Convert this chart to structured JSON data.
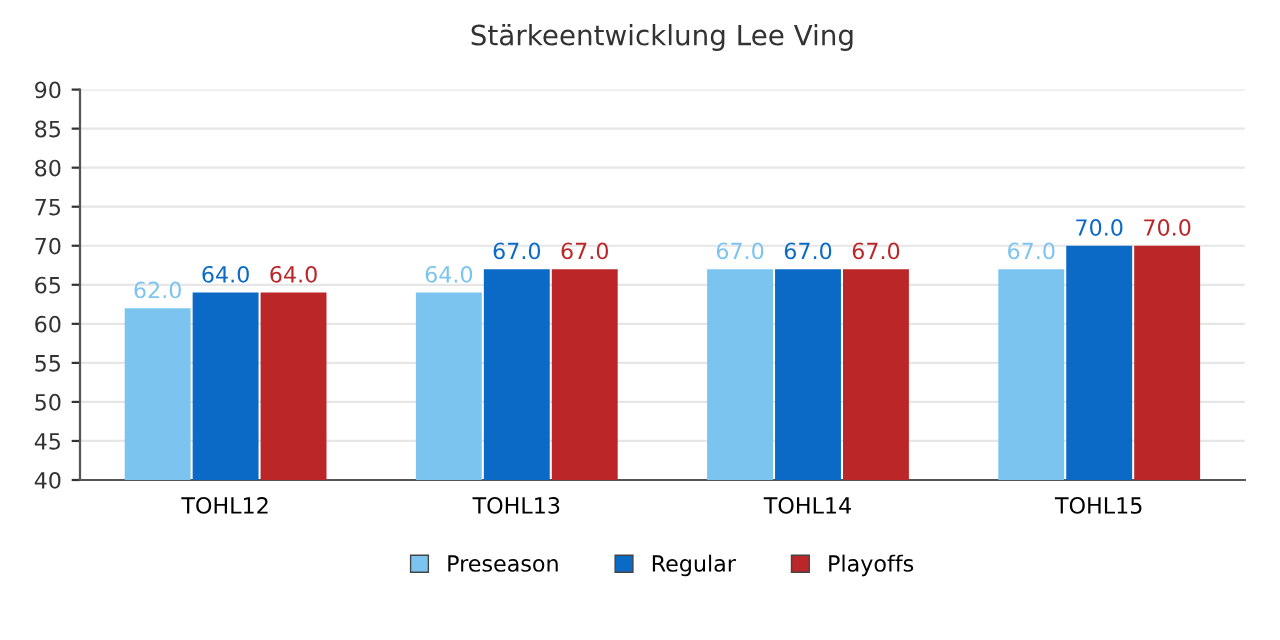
{
  "chart_data": {
    "type": "bar",
    "title": "Stärkeentwicklung Lee Ving",
    "categories": [
      "TOHL12",
      "TOHL13",
      "TOHL14",
      "TOHL15"
    ],
    "series": [
      {
        "name": "Preseason",
        "color": "#7cc4f0",
        "values": [
          62,
          64,
          67,
          67
        ],
        "value_labels": [
          "62.0",
          "64.0",
          "67.0",
          "67.0"
        ]
      },
      {
        "name": "Regular",
        "color": "#0a6ac6",
        "values": [
          64,
          67,
          67,
          70
        ],
        "value_labels": [
          "64.0",
          "67.0",
          "67.0",
          "70.0"
        ]
      },
      {
        "name": "Playoffs",
        "color": "#bb2729",
        "values": [
          64,
          67,
          67,
          70
        ],
        "value_labels": [
          "64.0",
          "67.0",
          "67.0",
          "70.0"
        ]
      }
    ],
    "ylim": [
      40,
      90
    ],
    "yticks": [
      40,
      45,
      50,
      55,
      60,
      65,
      70,
      75,
      80,
      85,
      90
    ],
    "grid": "y",
    "legend": "bottom"
  }
}
